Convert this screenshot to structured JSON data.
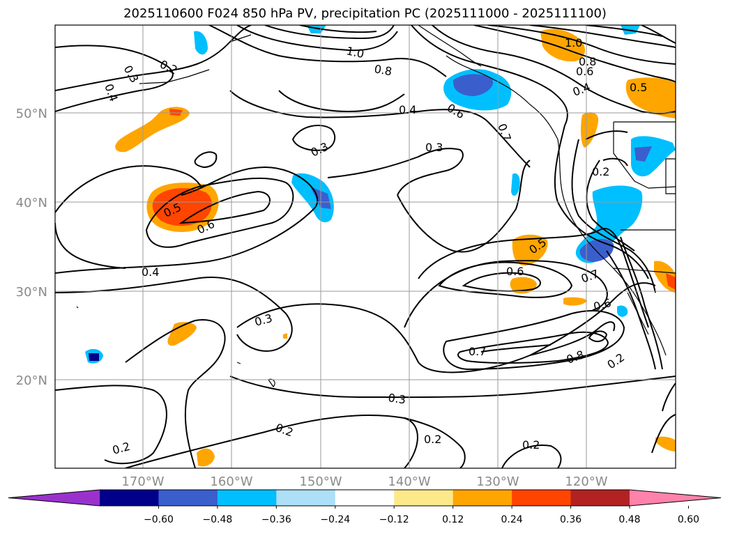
{
  "title": "2025110600 F024 850 hPa PV, precipitation PC (2025111000 - 2025111100)",
  "map": {
    "lat_labels": [
      "50°N",
      "40°N",
      "30°N",
      "20°N"
    ],
    "lon_labels": [
      "170°W",
      "160°W",
      "150°W",
      "140°W",
      "130°W",
      "120°W"
    ],
    "grid_color": "#9a9a9a",
    "contour_color": "#000000",
    "contour_labels": [
      {
        "text": "1.0"
      },
      {
        "text": "0.8"
      },
      {
        "text": "0.6"
      },
      {
        "text": "0.5"
      },
      {
        "text": "0.4"
      },
      {
        "text": "0.3"
      },
      {
        "text": "0.2"
      },
      {
        "text": "0.7"
      }
    ]
  },
  "colorbar": {
    "ticks": [
      "−0.60",
      "−0.48",
      "−0.36",
      "−0.24",
      "−0.12",
      "0.12",
      "0.24",
      "0.36",
      "0.48",
      "0.60"
    ],
    "colors": [
      "#9932CC",
      "#00008B",
      "#3A5FCD",
      "#00BFFF",
      "#ADDFF7",
      "#FFFFFF",
      "#FCE98A",
      "#FFA500",
      "#FF4500",
      "#B22222",
      "#FF82AB"
    ]
  }
}
